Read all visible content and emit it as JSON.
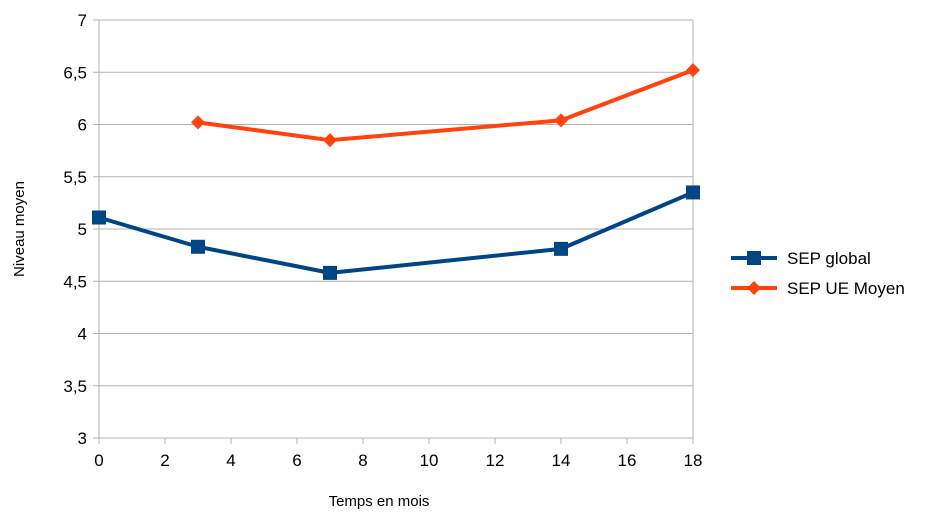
{
  "chart_data": {
    "type": "line",
    "title": "",
    "xlabel": "Temps en mois",
    "ylabel": "Niveau moyen",
    "xlim": [
      0,
      18
    ],
    "ylim": [
      3,
      7
    ],
    "x_ticks": [
      0,
      2,
      4,
      6,
      8,
      10,
      12,
      14,
      16,
      18
    ],
    "x_tick_labels": [
      "0",
      "2",
      "4",
      "6",
      "8",
      "10",
      "12",
      "14",
      "16",
      "18"
    ],
    "y_ticks": [
      3,
      3.5,
      4,
      4.5,
      5,
      5.5,
      6,
      6.5,
      7
    ],
    "y_tick_labels": [
      "3",
      "3,5",
      "4",
      "4,5",
      "5",
      "5,5",
      "6",
      "6,5",
      "7"
    ],
    "grid": "horizontal",
    "legend_position": "right",
    "series": [
      {
        "name": "SEP global",
        "color": "#004586",
        "marker": "square",
        "x": [
          0,
          3,
          7,
          14,
          18
        ],
        "y": [
          5.11,
          4.83,
          4.58,
          4.81,
          5.35
        ]
      },
      {
        "name": "SEP UE Moyen",
        "color": "#ff420e",
        "marker": "diamond",
        "x": [
          3,
          7,
          14,
          18
        ],
        "y": [
          6.02,
          5.85,
          6.04,
          6.52
        ]
      }
    ]
  }
}
